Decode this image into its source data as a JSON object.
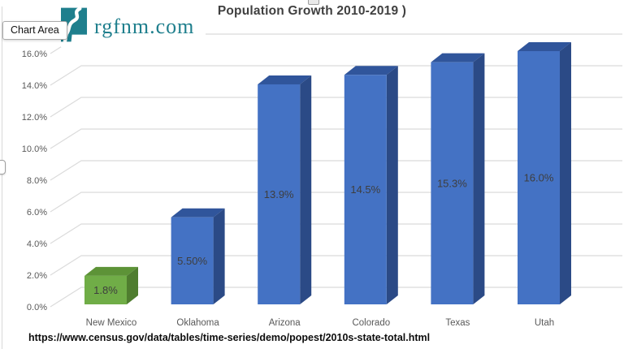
{
  "ui": {
    "tooltip": "Chart Area",
    "logo": {
      "text": "rgfnm.com",
      "color": "#1F7F8D",
      "icon": "new-mexico-river-logo"
    },
    "source_url": "https://www.census.gov/data/tables/time-series/demo/popest/2010s-state-total.html"
  },
  "chart_data": {
    "type": "bar",
    "style": "3d-column",
    "title": "Population Growth 2010-2019 )",
    "categories": [
      "New Mexico",
      "Oklahoma",
      "Arizona",
      "Colorado",
      "Texas",
      "Utah"
    ],
    "values": [
      1.8,
      5.5,
      13.9,
      14.5,
      15.3,
      16.0
    ],
    "data_labels": [
      "1.8%",
      "5.50%",
      "13.9%",
      "14.5%",
      "15.3%",
      "16.0%"
    ],
    "ylim": [
      0,
      16
    ],
    "ytick_step": 2,
    "ytick_labels": [
      "0.0%",
      "2.0%",
      "4.0%",
      "6.0%",
      "8.0%",
      "10.0%",
      "12.0%",
      "14.0%",
      "16.0%"
    ],
    "grid": true,
    "legend": "none",
    "xlabel": "",
    "ylabel": "",
    "colors": {
      "gridline": "#dbdbdb",
      "axis_text": "#595959",
      "label_text": "#3e3e3e",
      "title_text": "#404040",
      "bar_palette": [
        "green",
        "blue",
        "blue",
        "blue",
        "blue",
        "blue"
      ],
      "palette": {
        "green": {
          "front": "#70AD47",
          "top": "#5D9337",
          "side": "#4F7D2F"
        },
        "blue": {
          "front": "#4472C4",
          "top": "#30559B",
          "side": "#2B4A86"
        }
      }
    }
  }
}
